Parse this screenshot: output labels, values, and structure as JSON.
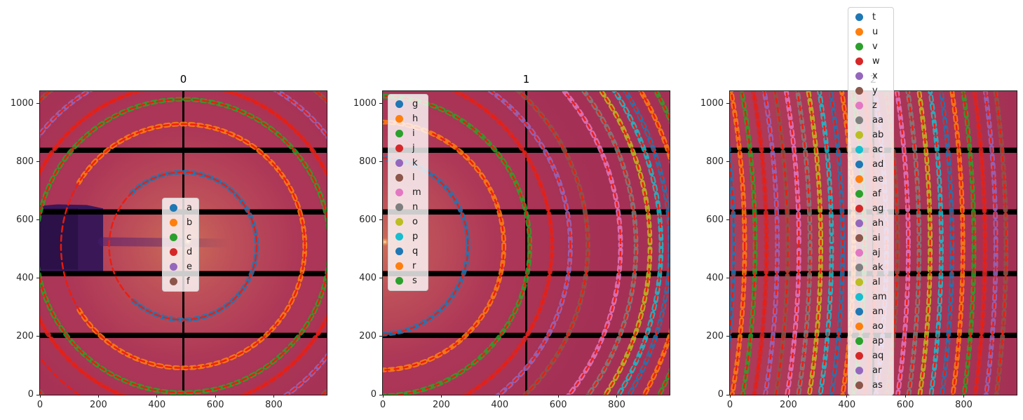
{
  "figure": {
    "kind": "diffraction-ring-calibration-figure",
    "background": "#ffffff"
  },
  "palette": {
    "blue": "#1f77b4",
    "orange": "#ff7f0e",
    "green": "#2ca02c",
    "red": "#d62728",
    "purple": "#9467bd",
    "brown": "#8c564b",
    "pink": "#e377c2",
    "gray": "#7f7f7f",
    "olive": "#bcbd22",
    "cyan": "#17becf"
  },
  "style_colors": {
    "overlay_dash": "#ed1c0e",
    "bg_center": "#cb6c58",
    "bg_mid": "#ad3757",
    "bg_outer": "#a43155",
    "module_gap": "#000000",
    "beamstop": "rgba(52,22,88,0.95)",
    "streak": "rgba(70,28,112,0.5)"
  },
  "chart_data": {
    "type": "heatmap",
    "subtype": "detector-images-with-ring-overlays",
    "x_range": [
      0,
      981
    ],
    "y_range": [
      0,
      1043
    ],
    "x_ticks": [
      0,
      200,
      400,
      600,
      800
    ],
    "y_ticks": [
      0,
      200,
      400,
      600,
      800,
      1000
    ],
    "detector_gaps": {
      "horizontal_bands": [
        [
          195,
          213
        ],
        [
          407,
          425
        ],
        [
          619,
          637
        ],
        [
          831,
          849
        ]
      ],
      "vertical_band": [
        487,
        494
      ]
    },
    "panels": [
      {
        "title": "0",
        "legend_loc": "center",
        "beam_center": [
          489,
          511
        ],
        "background": "radial",
        "beam_spot": [
          506,
          527
        ],
        "beamstop": {
          "polygon": [
            [
              0,
              424
            ],
            [
              216,
              424
            ],
            [
              216,
              640
            ],
            [
              160,
              652
            ],
            [
              60,
              654
            ],
            [
              0,
              649
            ]
          ],
          "streak": {
            "from": [
              214,
              526
            ],
            "to": [
              650,
              521
            ],
            "width": 30
          }
        },
        "rings": [
          {
            "label": "a",
            "color": "blue",
            "radius": 253,
            "gap": {
              "center": 3.14,
              "half": 0.8
            }
          },
          {
            "label": "b",
            "color": "orange",
            "radius": 418,
            "gap": {
              "center": 3.14,
              "half": 0.55
            }
          },
          {
            "label": "c",
            "color": "green",
            "radius": 503
          },
          {
            "label": "d",
            "color": "red",
            "radius": 552
          },
          {
            "label": "e",
            "color": "purple",
            "radius": 622,
            "gap": {
              "center": 2.6,
              "half": 0.5
            }
          },
          {
            "label": "f",
            "color": "brown",
            "radius": 700
          }
        ]
      },
      {
        "title": "1",
        "legend_loc": "upper left",
        "beam_center": [
          -10,
          511
        ],
        "background": "radial",
        "beam_spot": [
          7,
          525
        ],
        "beamstop": null,
        "rings": [
          {
            "label": "g",
            "color": "blue",
            "radius": 302
          },
          {
            "label": "h",
            "color": "orange",
            "radius": 425
          },
          {
            "label": "i",
            "color": "green",
            "radius": 514
          },
          {
            "label": "j",
            "color": "red",
            "radius": 590
          },
          {
            "label": "k",
            "color": "purple",
            "radius": 653
          },
          {
            "label": "l",
            "color": "brown",
            "radius": 713
          },
          {
            "label": "m",
            "color": "pink",
            "radius": 825
          },
          {
            "label": "n",
            "color": "gray",
            "radius": 878
          },
          {
            "label": "o",
            "color": "olive",
            "radius": 926
          },
          {
            "label": "p",
            "color": "cyan",
            "radius": 964
          },
          {
            "label": "q",
            "color": "blue",
            "radius": 995
          },
          {
            "label": "r",
            "color": "orange",
            "radius": 1040
          },
          {
            "label": "s",
            "color": "green",
            "radius": 1085
          }
        ]
      },
      {
        "title": "2",
        "legend_loc": "upper center",
        "beam_center": [
          -3000,
          511
        ],
        "background": "flat",
        "beam_spot": null,
        "beamstop": null,
        "rings": [
          {
            "label": "t",
            "color": "blue",
            "radius": 3020
          },
          {
            "label": "u",
            "color": "orange",
            "radius": 3057
          },
          {
            "label": "v",
            "color": "green",
            "radius": 3093
          },
          {
            "label": "w",
            "color": "red",
            "radius": 3132
          },
          {
            "label": "x",
            "color": "purple",
            "radius": 3169
          },
          {
            "label": "y",
            "color": "brown",
            "radius": 3205
          },
          {
            "label": "z",
            "color": "pink",
            "radius": 3243
          },
          {
            "label": "aa",
            "color": "gray",
            "radius": 3281
          },
          {
            "label": "ab",
            "color": "olive",
            "radius": 3318
          },
          {
            "label": "ac",
            "color": "cyan",
            "radius": 3355
          },
          {
            "label": "ad",
            "color": "blue",
            "radius": 3393
          },
          {
            "label": "ae",
            "color": "orange",
            "radius": 3431
          },
          {
            "label": "af",
            "color": "green",
            "radius": 3468
          },
          {
            "label": "ag",
            "color": "red",
            "radius": 3505
          },
          {
            "label": "ah",
            "color": "purple",
            "radius": 3543
          },
          {
            "label": "ai",
            "color": "brown",
            "radius": 3581
          },
          {
            "label": "aj",
            "color": "pink",
            "radius": 3618
          },
          {
            "label": "ak",
            "color": "gray",
            "radius": 3655
          },
          {
            "label": "al",
            "color": "olive",
            "radius": 3693
          },
          {
            "label": "am",
            "color": "cyan",
            "radius": 3731
          },
          {
            "label": "an",
            "color": "blue",
            "radius": 3768
          },
          {
            "label": "ao",
            "color": "orange",
            "radius": 3805
          },
          {
            "label": "ap",
            "color": "green",
            "radius": 3843
          },
          {
            "label": "aq",
            "color": "red",
            "radius": 3881
          },
          {
            "label": "ar",
            "color": "purple",
            "radius": 3918
          },
          {
            "label": "as",
            "color": "brown",
            "radius": 3953
          }
        ]
      }
    ]
  }
}
